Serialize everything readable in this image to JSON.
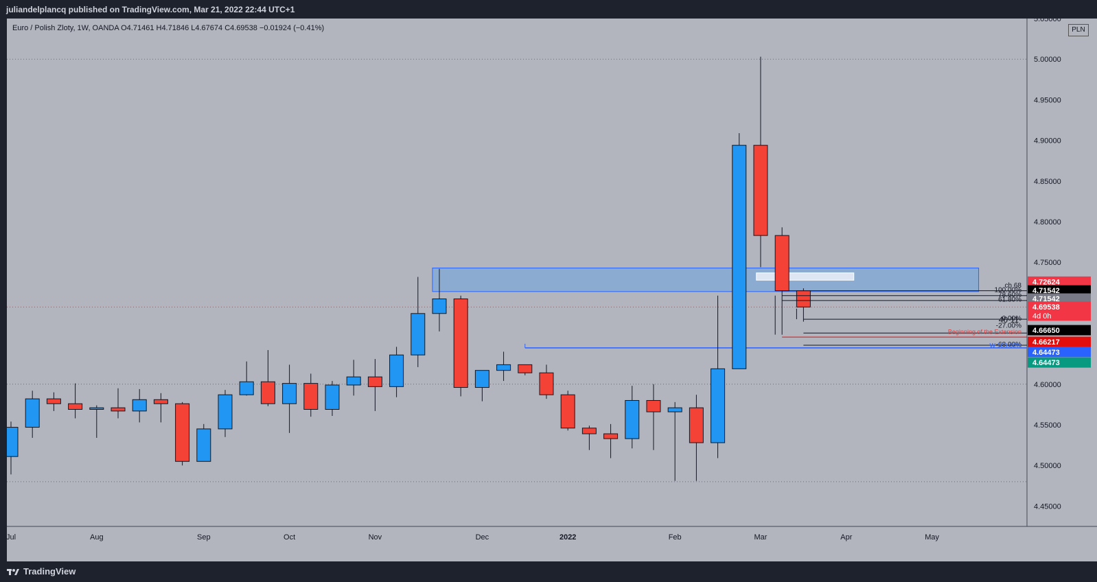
{
  "publisher_line": "juliandelplancq published on TradingView.com, Mar 21, 2022 22:44 UTC+1",
  "legend": "Euro / Polish Zloty, 1W, OANDA  O4.71461  H4.71846  L4.67674  C4.69538  −0.01924 (−0.41%)",
  "currency_button": "PLN",
  "footer_logo": "TradingView",
  "colors": {
    "up": "#2196f3",
    "down": "#f44336",
    "background": "#b2b5be",
    "zone": "#7eaad6"
  },
  "chart_data": {
    "type": "candlestick",
    "title": "Euro / Polish Zloty, 1W, OANDA",
    "ylim": [
      4.425,
      5.05
    ],
    "y_ticks": [
      "4.45000",
      "4.50000",
      "4.55000",
      "4.60000",
      "4.65000",
      "4.70000",
      "4.75000",
      "4.80000",
      "4.85000",
      "4.90000",
      "4.95000",
      "5.00000",
      "5.05000"
    ],
    "x_labels": [
      {
        "label": "Jul",
        "bar": 0
      },
      {
        "label": "Aug",
        "bar": 4
      },
      {
        "label": "Sep",
        "bar": 9
      },
      {
        "label": "Oct",
        "bar": 13
      },
      {
        "label": "Nov",
        "bar": 17
      },
      {
        "label": "Dec",
        "bar": 22
      },
      {
        "label": "2022",
        "bar": 26
      },
      {
        "label": "Feb",
        "bar": 31
      },
      {
        "label": "Mar",
        "bar": 35
      },
      {
        "label": "Apr",
        "bar": 39
      },
      {
        "label": "May",
        "bar": 43
      }
    ],
    "candles": [
      {
        "o": 4.511,
        "h": 4.554,
        "l": 4.489,
        "c": 4.547
      },
      {
        "o": 4.547,
        "h": 4.592,
        "l": 4.534,
        "c": 4.582
      },
      {
        "o": 4.582,
        "h": 4.59,
        "l": 4.567,
        "c": 4.576
      },
      {
        "o": 4.576,
        "h": 4.601,
        "l": 4.558,
        "c": 4.569
      },
      {
        "o": 4.569,
        "h": 4.574,
        "l": 4.534,
        "c": 4.571
      },
      {
        "o": 4.571,
        "h": 4.595,
        "l": 4.558,
        "c": 4.567
      },
      {
        "o": 4.567,
        "h": 4.594,
        "l": 4.553,
        "c": 4.581
      },
      {
        "o": 4.581,
        "h": 4.589,
        "l": 4.553,
        "c": 4.576
      },
      {
        "o": 4.576,
        "h": 4.578,
        "l": 4.5,
        "c": 4.505
      },
      {
        "o": 4.505,
        "h": 4.551,
        "l": 4.505,
        "c": 4.545
      },
      {
        "o": 4.545,
        "h": 4.593,
        "l": 4.535,
        "c": 4.587
      },
      {
        "o": 4.587,
        "h": 4.628,
        "l": 4.586,
        "c": 4.603
      },
      {
        "o": 4.603,
        "h": 4.642,
        "l": 4.573,
        "c": 4.576
      },
      {
        "o": 4.576,
        "h": 4.624,
        "l": 4.54,
        "c": 4.601
      },
      {
        "o": 4.601,
        "h": 4.613,
        "l": 4.56,
        "c": 4.569
      },
      {
        "o": 4.569,
        "h": 4.604,
        "l": 4.561,
        "c": 4.599
      },
      {
        "o": 4.599,
        "h": 4.63,
        "l": 4.586,
        "c": 4.609
      },
      {
        "o": 4.609,
        "h": 4.631,
        "l": 4.567,
        "c": 4.597
      },
      {
        "o": 4.597,
        "h": 4.646,
        "l": 4.584,
        "c": 4.636
      },
      {
        "o": 4.636,
        "h": 4.732,
        "l": 4.621,
        "c": 4.687
      },
      {
        "o": 4.687,
        "h": 4.742,
        "l": 4.665,
        "c": 4.705
      },
      {
        "o": 4.705,
        "h": 4.709,
        "l": 4.585,
        "c": 4.596
      },
      {
        "o": 4.596,
        "h": 4.617,
        "l": 4.579,
        "c": 4.617
      },
      {
        "o": 4.617,
        "h": 4.64,
        "l": 4.604,
        "c": 4.624
      },
      {
        "o": 4.624,
        "h": 4.624,
        "l": 4.611,
        "c": 4.614
      },
      {
        "o": 4.614,
        "h": 4.624,
        "l": 4.582,
        "c": 4.587
      },
      {
        "o": 4.587,
        "h": 4.592,
        "l": 4.543,
        "c": 4.546
      },
      {
        "o": 4.546,
        "h": 4.549,
        "l": 4.519,
        "c": 4.539
      },
      {
        "o": 4.539,
        "h": 4.551,
        "l": 4.509,
        "c": 4.533
      },
      {
        "o": 4.533,
        "h": 4.598,
        "l": 4.521,
        "c": 4.58
      },
      {
        "o": 4.58,
        "h": 4.6,
        "l": 4.519,
        "c": 4.566
      },
      {
        "o": 4.566,
        "h": 4.578,
        "l": 4.481,
        "c": 4.571
      },
      {
        "o": 4.571,
        "h": 4.587,
        "l": 4.481,
        "c": 4.528
      },
      {
        "o": 4.528,
        "h": 4.709,
        "l": 4.509,
        "c": 4.619
      },
      {
        "o": 4.619,
        "h": 4.909,
        "l": 4.619,
        "c": 4.894
      },
      {
        "o": 4.894,
        "h": 5.003,
        "l": 4.744,
        "c": 4.783
      },
      {
        "o": 4.783,
        "h": 4.793,
        "l": 4.661,
        "c": 4.715
      },
      {
        "o": 4.715,
        "h": 4.718,
        "l": 4.677,
        "c": 4.695
      }
    ],
    "annotations": {
      "fib_labels": [
        "100.00%",
        "78.60%",
        "61.80%",
        "0.00%",
        "-27.00%",
        "-68.00%"
      ],
      "small_labels": [
        "ch 68",
        "40 11"
      ],
      "text_labels": [
        "Beginning of the Extension",
        "W 100.00%"
      ],
      "supply_zone": {
        "from_bar": 20,
        "to_bar": 45.5,
        "top": 4.743,
        "bottom": 4.714
      },
      "support_line": {
        "from_bar": 24,
        "value": 4.6447
      }
    },
    "price_tags": [
      {
        "label": "4.72624",
        "value": 4.72624,
        "color": "#f23645",
        "text": "#ffffff"
      },
      {
        "label": "4.71542",
        "value": 4.71542,
        "color": "#000000",
        "text": "#ffffff"
      },
      {
        "label": "4.71542",
        "value": 4.70542,
        "color": "#787b86",
        "text": "#ffffff"
      },
      {
        "label": "4.69538",
        "value": 4.69538,
        "color": "#f23645",
        "text": "#ffffff",
        "sub": "4d 0h"
      },
      {
        "label": "4.66650",
        "value": 4.6665,
        "color": "#000000",
        "text": "#ffffff"
      },
      {
        "label": "4.66217",
        "value": 4.65217,
        "color": "#e20d0d",
        "text": "#ffffff"
      },
      {
        "label": "4.64473",
        "value": 4.63973,
        "color": "#2962ff",
        "text": "#ffffff"
      },
      {
        "label": "4.64473",
        "value": 4.62673,
        "color": "#089981",
        "text": "#ffffff"
      }
    ]
  }
}
